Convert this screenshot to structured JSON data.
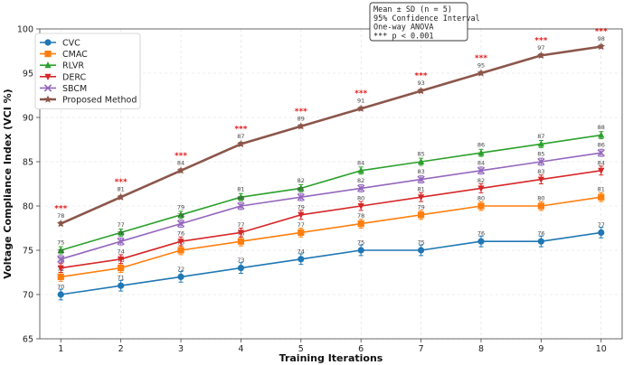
{
  "chart_data": {
    "type": "line",
    "xlabel": "Training Iterations",
    "ylabel": "Voltage Compliance Index (VCI %)",
    "x": [
      1,
      2,
      3,
      4,
      5,
      6,
      7,
      8,
      9,
      10
    ],
    "xticks": [
      "1",
      "2",
      "3",
      "4",
      "5",
      "6",
      "7",
      "8",
      "9",
      "10"
    ],
    "ylim": [
      65,
      100
    ],
    "yticks": [
      "65",
      "70",
      "75",
      "80",
      "85",
      "90",
      "95",
      "100"
    ],
    "grid": true,
    "legend_position": "top-left",
    "series": [
      {
        "name": "CVC",
        "color": "#1f77b4",
        "marker": "circle",
        "values": [
          70,
          71,
          72,
          73,
          74,
          75,
          75,
          76,
          76,
          77
        ],
        "labels": [
          "70",
          "71",
          "72",
          "73",
          "74",
          "75",
          "75",
          "76",
          "76",
          "77"
        ],
        "error": 0.6
      },
      {
        "name": "CMAC",
        "color": "#ff7f0e",
        "marker": "square",
        "values": [
          72,
          73,
          75,
          76,
          77,
          78,
          79,
          80,
          80,
          81
        ],
        "labels": [
          "72",
          "73",
          "75",
          "76",
          "77",
          "78",
          "79",
          "80",
          "80",
          "81"
        ],
        "error": 0.5
      },
      {
        "name": "RLVR",
        "color": "#2ca02c",
        "marker": "triangle-up",
        "values": [
          75,
          77,
          79,
          81,
          82,
          84,
          85,
          86,
          87,
          88
        ],
        "labels": [
          "75",
          "77",
          "79",
          "81",
          "82",
          "84",
          "85",
          "86",
          "87",
          "88"
        ],
        "error": 0.4
      },
      {
        "name": "DERC",
        "color": "#d62728",
        "marker": "triangle-down",
        "values": [
          73,
          74,
          76,
          77,
          79,
          80,
          81,
          82,
          83,
          84
        ],
        "labels": [
          "73",
          "74",
          "76",
          "77",
          "79",
          "80",
          "81",
          "82",
          "83",
          "84"
        ],
        "error": 0.5
      },
      {
        "name": "SBCM",
        "color": "#9467bd",
        "marker": "x",
        "values": [
          74,
          76,
          78,
          80,
          81,
          82,
          83,
          84,
          85,
          86
        ],
        "labels": [
          "74",
          "76",
          "78",
          "80",
          "81",
          "82",
          "83",
          "84",
          "85",
          "86"
        ],
        "error": 0.4
      },
      {
        "name": "Proposed Method",
        "color": "#8c564b",
        "marker": "star",
        "values": [
          78,
          81,
          84,
          87,
          89,
          91,
          93,
          95,
          97,
          98
        ],
        "labels": [
          "78",
          "81",
          "84",
          "87",
          "89",
          "91",
          "93",
          "95",
          "97",
          "98"
        ],
        "error": 0.2
      }
    ],
    "significance_marker": "***",
    "significance_color": "#e02020",
    "stats_box": [
      "Mean ± SD (n = 5)",
      "95% Confidence Interval",
      "One-way ANOVA",
      "*** p < 0.001"
    ]
  }
}
